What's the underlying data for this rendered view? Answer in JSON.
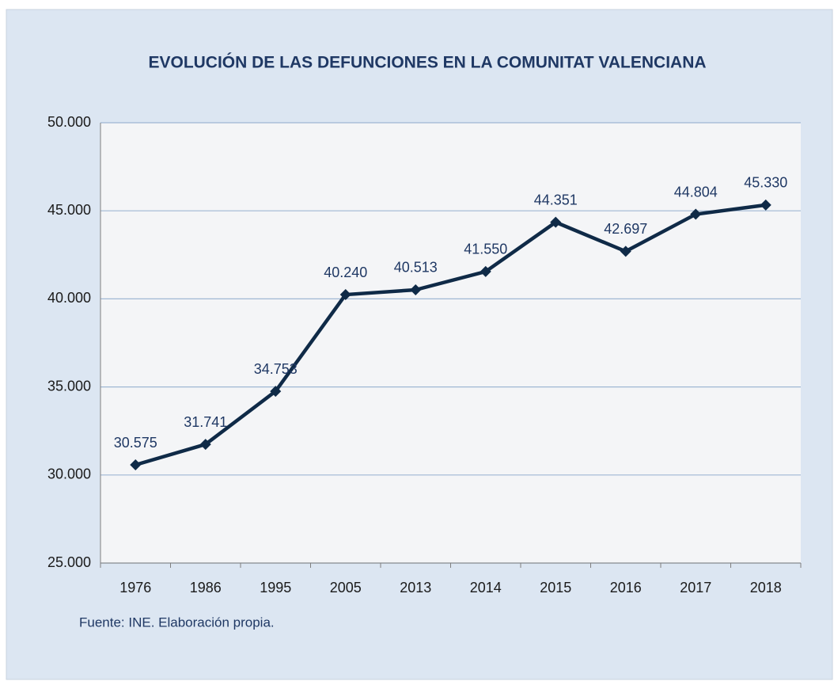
{
  "chart_data": {
    "type": "line",
    "title": "EVOLUCIÓN DE LAS DEFUNCIONES EN LA COMUNITAT VALENCIANA",
    "source": "Fuente: INE. Elaboración propia.",
    "categories": [
      "1976",
      "1986",
      "1995",
      "2005",
      "2013",
      "2014",
      "2015",
      "2016",
      "2017",
      "2018"
    ],
    "values": [
      30575,
      31741,
      34753,
      40240,
      40513,
      41550,
      44351,
      42697,
      44804,
      45330
    ],
    "value_labels": [
      "30.575",
      "31.741",
      "34.753",
      "40.240",
      "40.513",
      "41.550",
      "44.351",
      "42.697",
      "44.804",
      "45.330"
    ],
    "color": "#0f2a47",
    "ylim": [
      25000,
      50000
    ],
    "yticks": [
      {
        "value": 25000,
        "label": "25.000"
      },
      {
        "value": 30000,
        "label": "30.000"
      },
      {
        "value": 35000,
        "label": "35.000"
      },
      {
        "value": 40000,
        "label": "40.000"
      },
      {
        "value": 45000,
        "label": "45.000"
      },
      {
        "value": 50000,
        "label": "50.000"
      }
    ],
    "grid": true
  }
}
